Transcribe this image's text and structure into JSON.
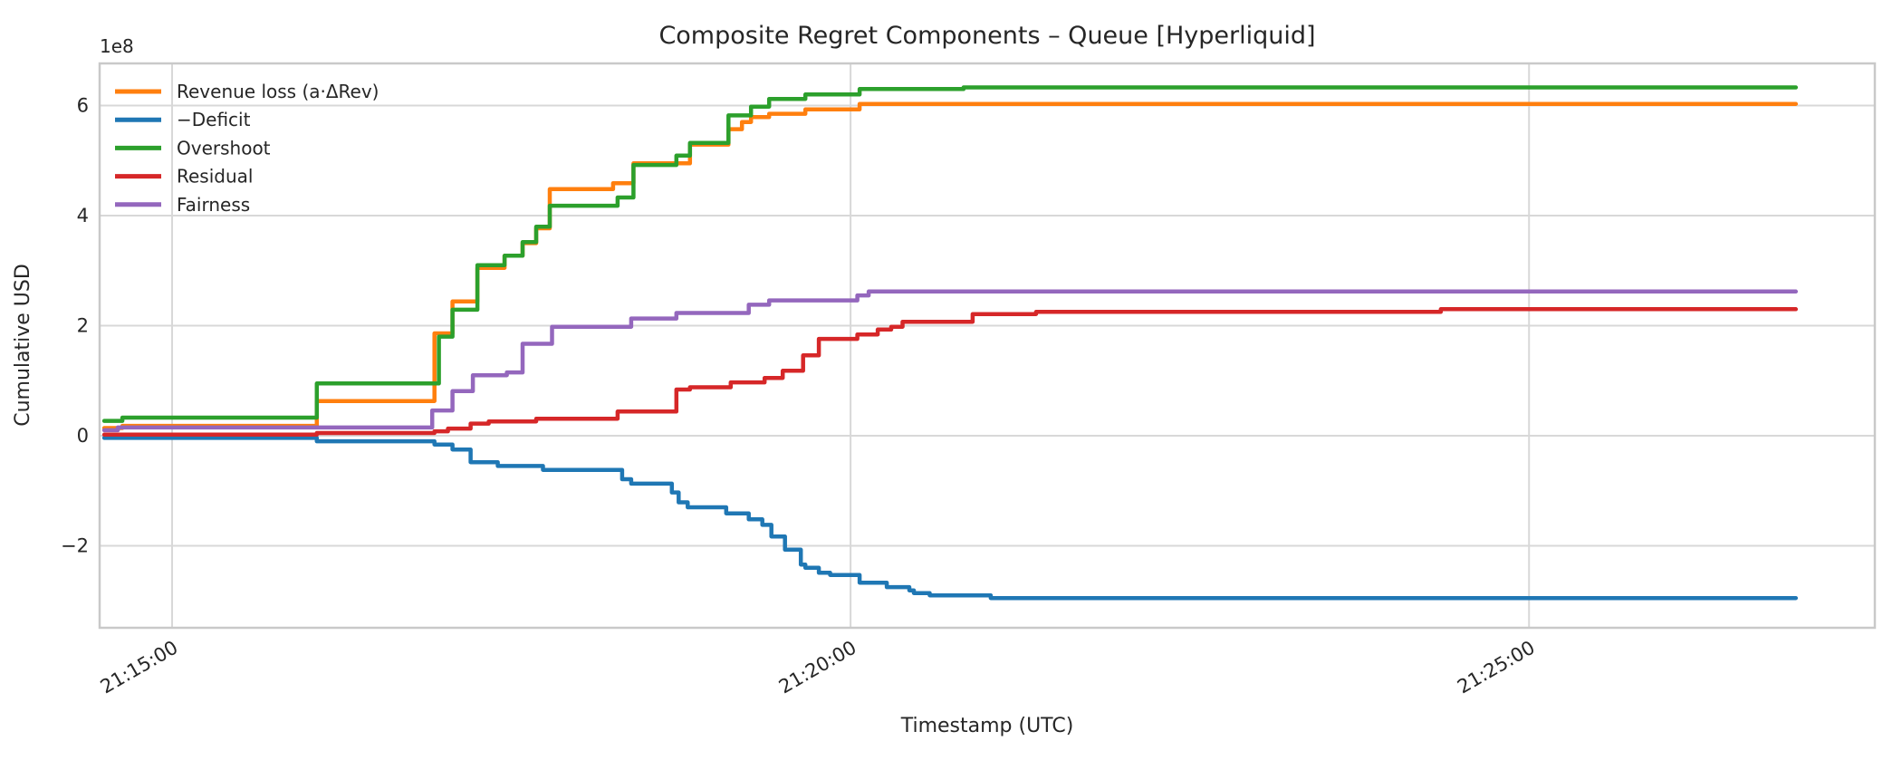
{
  "chart_data": {
    "type": "line",
    "title": "Composite Regret Components – Queue [Hyperliquid]",
    "xlabel": "Timestamp (UTC)",
    "ylabel": "Cumulative USD",
    "y_offset_label": "1e8",
    "y_units": "1e8 USD",
    "x_units": "seconds relative to 21:15:00 UTC",
    "grid": true,
    "background_color": "#ffffff",
    "grid_color": "#d8d8d8",
    "frame_color": "#c9c9c9",
    "text_color": "#262626",
    "x_axis": {
      "range_seconds": [
        -32,
        753
      ],
      "ticks": [
        {
          "t": 0,
          "label": "21:15:00"
        },
        {
          "t": 300,
          "label": "21:20:00"
        },
        {
          "t": 600,
          "label": "21:25:00"
        }
      ],
      "tick_rotation_deg": 30
    },
    "y_axis": {
      "range": [
        -3.49,
        6.77
      ],
      "ticks": [
        -2,
        0,
        2,
        4,
        6
      ],
      "tick_labels": [
        "−2",
        "0",
        "2",
        "4",
        "6"
      ]
    },
    "legend": {
      "position": "upper left",
      "frame": false
    },
    "series": [
      {
        "name": "Revenue loss (a·ΔRev)",
        "color": "#ff7f0e",
        "points": [
          [
            -30,
            0.14
          ],
          [
            -22,
            0.18
          ],
          [
            64,
            0.63
          ],
          [
            116,
            1.86
          ],
          [
            124,
            2.44
          ],
          [
            135,
            3.05
          ],
          [
            147,
            3.27
          ],
          [
            155,
            3.5
          ],
          [
            161,
            3.77
          ],
          [
            167,
            4.48
          ],
          [
            195,
            4.59
          ],
          [
            204,
            4.95
          ],
          [
            229,
            5.29
          ],
          [
            246,
            5.57
          ],
          [
            252,
            5.7
          ],
          [
            256,
            5.79
          ],
          [
            264,
            5.85
          ],
          [
            280,
            5.93
          ],
          [
            304,
            6.03
          ],
          [
            718,
            6.03
          ]
        ]
      },
      {
        "name": "−Deficit",
        "color": "#1f77b4",
        "points": [
          [
            -30,
            -0.04
          ],
          [
            64,
            -0.1
          ],
          [
            116,
            -0.16
          ],
          [
            124,
            -0.25
          ],
          [
            132,
            -0.48
          ],
          [
            144,
            -0.55
          ],
          [
            164,
            -0.62
          ],
          [
            199,
            -0.79
          ],
          [
            203,
            -0.87
          ],
          [
            221,
            -1.03
          ],
          [
            224,
            -1.21
          ],
          [
            228,
            -1.3
          ],
          [
            245,
            -1.41
          ],
          [
            255,
            -1.52
          ],
          [
            261,
            -1.62
          ],
          [
            265,
            -1.83
          ],
          [
            271,
            -2.07
          ],
          [
            278,
            -2.34
          ],
          [
            280,
            -2.4
          ],
          [
            286,
            -2.49
          ],
          [
            291,
            -2.53
          ],
          [
            304,
            -2.67
          ],
          [
            316,
            -2.75
          ],
          [
            326,
            -2.81
          ],
          [
            328,
            -2.86
          ],
          [
            335,
            -2.9
          ],
          [
            362,
            -2.95
          ],
          [
            718,
            -2.95
          ]
        ]
      },
      {
        "name": "Overshoot",
        "color": "#2ca02c",
        "points": [
          [
            -30,
            0.27
          ],
          [
            -22,
            0.33
          ],
          [
            64,
            0.95
          ],
          [
            118,
            1.8
          ],
          [
            124,
            2.29
          ],
          [
            135,
            3.1
          ],
          [
            147,
            3.27
          ],
          [
            155,
            3.52
          ],
          [
            161,
            3.8
          ],
          [
            167,
            4.18
          ],
          [
            197,
            4.33
          ],
          [
            204,
            4.92
          ],
          [
            223,
            5.09
          ],
          [
            229,
            5.32
          ],
          [
            246,
            5.82
          ],
          [
            256,
            5.98
          ],
          [
            264,
            6.12
          ],
          [
            280,
            6.2
          ],
          [
            304,
            6.3
          ],
          [
            350,
            6.33
          ],
          [
            718,
            6.33
          ]
        ]
      },
      {
        "name": "Residual",
        "color": "#d62728",
        "points": [
          [
            -30,
            0.02
          ],
          [
            64,
            0.05
          ],
          [
            116,
            0.08
          ],
          [
            122,
            0.13
          ],
          [
            132,
            0.22
          ],
          [
            140,
            0.26
          ],
          [
            161,
            0.31
          ],
          [
            197,
            0.44
          ],
          [
            223,
            0.84
          ],
          [
            229,
            0.88
          ],
          [
            247,
            0.97
          ],
          [
            262,
            1.05
          ],
          [
            270,
            1.18
          ],
          [
            279,
            1.46
          ],
          [
            286,
            1.76
          ],
          [
            303,
            1.84
          ],
          [
            312,
            1.93
          ],
          [
            318,
            1.98
          ],
          [
            323,
            2.07
          ],
          [
            354,
            2.21
          ],
          [
            382,
            2.25
          ],
          [
            561,
            2.3
          ],
          [
            718,
            2.3
          ]
        ]
      },
      {
        "name": "Fairness",
        "color": "#9467bd",
        "points": [
          [
            -30,
            0.1
          ],
          [
            -24,
            0.15
          ],
          [
            64,
            0.15
          ],
          [
            115,
            0.46
          ],
          [
            124,
            0.81
          ],
          [
            133,
            1.1
          ],
          [
            148,
            1.15
          ],
          [
            155,
            1.67
          ],
          [
            168,
            1.98
          ],
          [
            203,
            2.13
          ],
          [
            223,
            2.23
          ],
          [
            255,
            2.38
          ],
          [
            264,
            2.46
          ],
          [
            303,
            2.55
          ],
          [
            308,
            2.62
          ],
          [
            718,
            2.62
          ]
        ]
      }
    ]
  }
}
